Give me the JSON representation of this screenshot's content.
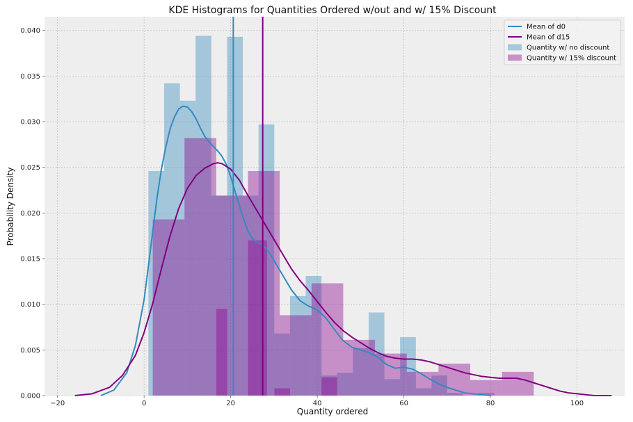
{
  "chart_data": {
    "type": "histogram",
    "title": "KDE Histograms for Quantities Ordered w/out and w/ 15% Discount",
    "xlabel": "Quantity ordered",
    "ylabel": "Probability Density",
    "xlim": [
      -23,
      111
    ],
    "ylim": [
      0,
      0.0415
    ],
    "xticks": [
      -20,
      0,
      20,
      40,
      60,
      80,
      100
    ],
    "xtick_labels": [
      "−20",
      "0",
      "20",
      "40",
      "60",
      "80",
      "100"
    ],
    "yticks": [
      0.0,
      0.005,
      0.01,
      0.015,
      0.02,
      0.025,
      0.03,
      0.035,
      0.04
    ],
    "ytick_labels": [
      "0.000",
      "0.005",
      "0.010",
      "0.015",
      "0.020",
      "0.025",
      "0.030",
      "0.035",
      "0.040"
    ],
    "grid": true,
    "legend_position": "top-right",
    "series": [
      {
        "name": "Quantity w/ no discount",
        "kind": "histogram",
        "color": "#348abd",
        "alpha": 0.4,
        "bin_edges": [
          1,
          4.63,
          8.27,
          11.9,
          15.53,
          19.17,
          22.8,
          26.43,
          30.07,
          33.7,
          37.33,
          40.97,
          44.6,
          48.23,
          51.87,
          55.5,
          59.13,
          62.77,
          66.4,
          70.03,
          73.67,
          77.3,
          80.93
        ],
        "density": [
          0.0246,
          0.0342,
          0.0323,
          0.0394,
          0.0219,
          0.0393,
          0.0219,
          0.0297,
          0.0068,
          0.0109,
          0.0131,
          0.0022,
          0.0025,
          0.0052,
          0.0091,
          0.0018,
          0.0064,
          0.0008,
          0.0022,
          0.0003,
          0.0,
          0.0003
        ]
      },
      {
        "name": "Quantity w/ 15% discount",
        "kind": "histogram",
        "color": "#8b008b",
        "alpha": 0.4,
        "bin_edges": [
          2,
          9.33,
          16.67,
          24,
          31.33,
          38.67,
          46,
          53.33,
          60.67,
          68,
          75.33,
          82.67,
          90
        ],
        "density": [
          0.0193,
          0.0282,
          0.0219,
          0.0246,
          0.0088,
          0.0123,
          0.0061,
          0.0046,
          0.0026,
          0.0035,
          0.0017,
          0.0026
        ]
      },
      {
        "name": "Quantity w/ 15% discount (overlap bins)",
        "kind": "histogram-overlap",
        "color": "#8b008b",
        "alpha": 0.4,
        "bin_edges": [
          16.67,
          19.2,
          20.2,
          24,
          28.4,
          30.07,
          33.7,
          37.33,
          40.97,
          44.6
        ],
        "density": [
          0.0095,
          0.0,
          0.0,
          0.017,
          0.0,
          0.0008,
          0.0,
          0.0,
          0.002,
          0.0
        ]
      },
      {
        "name": "KDE d0",
        "kind": "kde",
        "color": "#348abd",
        "x": [
          -10,
          -7,
          -4,
          -2,
          0,
          1,
          2,
          3,
          4,
          5,
          6,
          7,
          8,
          9,
          10,
          11,
          12,
          13,
          14,
          15,
          16,
          17,
          18,
          19,
          20,
          21,
          22,
          23,
          24,
          25,
          26,
          27,
          28,
          29,
          30,
          31,
          32,
          34,
          36,
          38,
          40,
          42,
          44,
          46,
          48,
          50,
          52,
          54,
          56,
          58,
          60,
          62,
          64,
          66,
          68,
          70,
          72,
          74,
          76,
          78,
          80
        ],
        "y": [
          0.0,
          0.0006,
          0.0025,
          0.0055,
          0.0105,
          0.0142,
          0.018,
          0.0217,
          0.0248,
          0.0272,
          0.0292,
          0.0305,
          0.0314,
          0.0317,
          0.0316,
          0.0311,
          0.0303,
          0.0293,
          0.0284,
          0.0278,
          0.0273,
          0.0268,
          0.0262,
          0.0253,
          0.024,
          0.0224,
          0.0208,
          0.0193,
          0.018,
          0.0172,
          0.0168,
          0.0166,
          0.0162,
          0.0156,
          0.0148,
          0.014,
          0.0132,
          0.0116,
          0.0104,
          0.0098,
          0.0094,
          0.0085,
          0.0072,
          0.006,
          0.0053,
          0.005,
          0.0047,
          0.0042,
          0.0034,
          0.003,
          0.0031,
          0.0029,
          0.0024,
          0.0018,
          0.0013,
          0.0009,
          0.0006,
          0.0003,
          0.0002,
          0.0001,
          0.0
        ]
      },
      {
        "name": "KDE d15",
        "kind": "kde",
        "color": "#800080",
        "x": [
          -16,
          -12,
          -8,
          -5,
          -2,
          0,
          2,
          4,
          6,
          8,
          10,
          12,
          14,
          16,
          17,
          18,
          20,
          22,
          24,
          26,
          28,
          30,
          32,
          34,
          36,
          38,
          40,
          42,
          44,
          46,
          48,
          50,
          52,
          54,
          56,
          58,
          60,
          62,
          64,
          66,
          68,
          70,
          72,
          74,
          76,
          78,
          80,
          82,
          84,
          86,
          88,
          90,
          92,
          94,
          96,
          98,
          100,
          102,
          104,
          106,
          108
        ],
        "y": [
          0.0,
          0.0002,
          0.0009,
          0.0022,
          0.0044,
          0.0069,
          0.0101,
          0.0139,
          0.0175,
          0.0205,
          0.0227,
          0.0241,
          0.0249,
          0.0254,
          0.0255,
          0.0254,
          0.0248,
          0.0236,
          0.0219,
          0.0203,
          0.0187,
          0.0171,
          0.0155,
          0.0139,
          0.0126,
          0.0115,
          0.0103,
          0.0091,
          0.008,
          0.0071,
          0.0064,
          0.0058,
          0.0052,
          0.0047,
          0.0043,
          0.0041,
          0.004,
          0.004,
          0.0039,
          0.0037,
          0.0034,
          0.0031,
          0.0028,
          0.0025,
          0.0023,
          0.0021,
          0.002,
          0.0019,
          0.0019,
          0.0019,
          0.0017,
          0.0014,
          0.0011,
          0.0008,
          0.0005,
          0.0003,
          0.0002,
          0.0001,
          0.0,
          0.0,
          0.0
        ]
      }
    ],
    "mean_lines": [
      {
        "name": "Mean of d0",
        "x": 20.6,
        "color": "#348abd"
      },
      {
        "name": "Mean of d15",
        "x": 27.4,
        "color": "#800080"
      }
    ],
    "legend": [
      {
        "label": "Mean of d0",
        "kind": "line",
        "color": "#348abd"
      },
      {
        "label": "Mean of d15",
        "kind": "line",
        "color": "#800080"
      },
      {
        "label": "Quantity w/ no discount",
        "kind": "patch",
        "color": "#348abd"
      },
      {
        "label": "Quantity w/ 15% discount",
        "kind": "patch",
        "color": "#8b008b"
      }
    ],
    "background": "#eeeeee"
  }
}
